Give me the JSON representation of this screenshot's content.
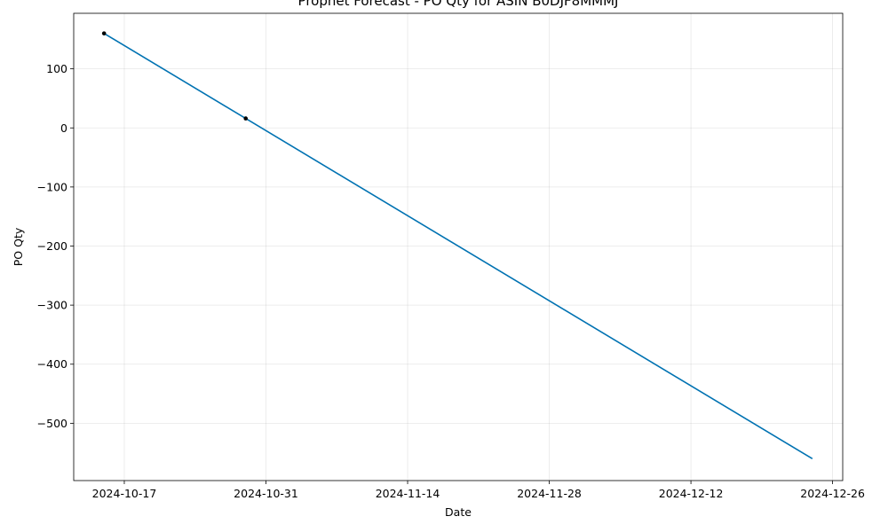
{
  "chart_data": {
    "type": "line",
    "title": "Prophet Forecast - PO Qty for ASIN B0DJF8MMMJ",
    "xlabel": "Date",
    "ylabel": "PO Qty",
    "x_ticks": [
      "2024-10-17",
      "2024-10-31",
      "2024-11-14",
      "2024-11-28",
      "2024-12-12",
      "2024-12-26"
    ],
    "y_ticks": [
      100,
      0,
      -100,
      -200,
      -300,
      -400,
      -500
    ],
    "y_tick_labels": [
      "100",
      "0",
      "−100",
      "−200",
      "−300",
      "−400",
      "−500"
    ],
    "xlim": [
      "2024-10-12",
      "2024-12-27"
    ],
    "ylim": [
      -597,
      194
    ],
    "grid": true,
    "series": [
      {
        "kind": "forecast-line",
        "color": "#0072b2",
        "points": [
          {
            "x": "2024-10-15",
            "y": 160
          },
          {
            "x": "2024-12-24",
            "y": -560
          }
        ]
      },
      {
        "kind": "observed-points",
        "color": "#000000",
        "points": [
          {
            "x": "2024-10-15",
            "y": 160
          },
          {
            "x": "2024-10-29",
            "y": 16
          }
        ]
      }
    ]
  }
}
